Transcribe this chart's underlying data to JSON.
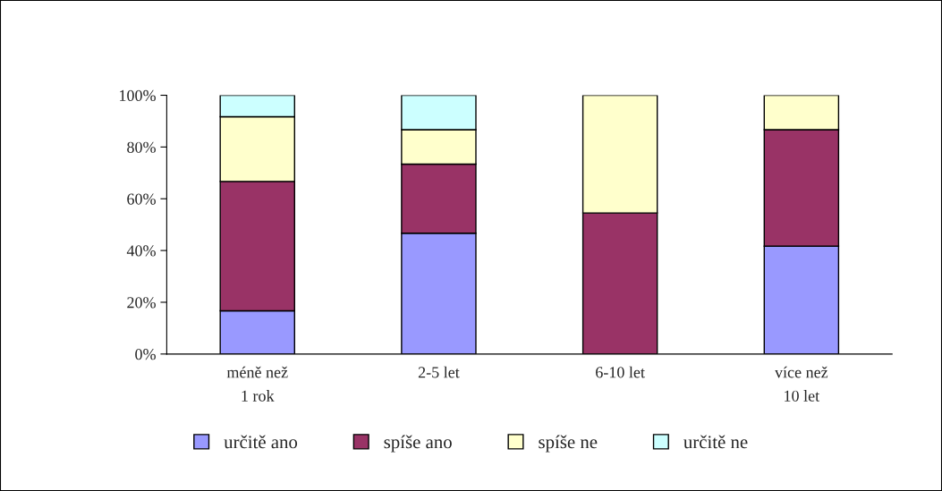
{
  "chart_data": {
    "type": "bar",
    "stacked": true,
    "categories": [
      "méně než\n1 rok",
      "2-5 let",
      "6-10 let",
      "více než\n10 let"
    ],
    "series": [
      {
        "name": "určitě ano",
        "color": "#9999ff",
        "values": [
          16.7,
          46.7,
          0,
          41.7
        ]
      },
      {
        "name": "spíše ano",
        "color": "#993366",
        "values": [
          50,
          26.7,
          54.5,
          45
        ]
      },
      {
        "name": "spíše ne",
        "color": "#ffffcc",
        "values": [
          25,
          13.3,
          45.5,
          13.3
        ]
      },
      {
        "name": "určitě ne",
        "color": "#ccffff",
        "values": [
          8.3,
          13.3,
          0,
          0
        ]
      }
    ],
    "ylim": [
      0,
      100
    ],
    "yticks": [
      {
        "value": 0,
        "label": "0%"
      },
      {
        "value": 20,
        "label": "20%"
      },
      {
        "value": 40,
        "label": "40%"
      },
      {
        "value": 60,
        "label": "60%"
      },
      {
        "value": 80,
        "label": "80%"
      },
      {
        "value": 100,
        "label": "100%"
      }
    ],
    "grid": false,
    "legend": "bottom"
  }
}
